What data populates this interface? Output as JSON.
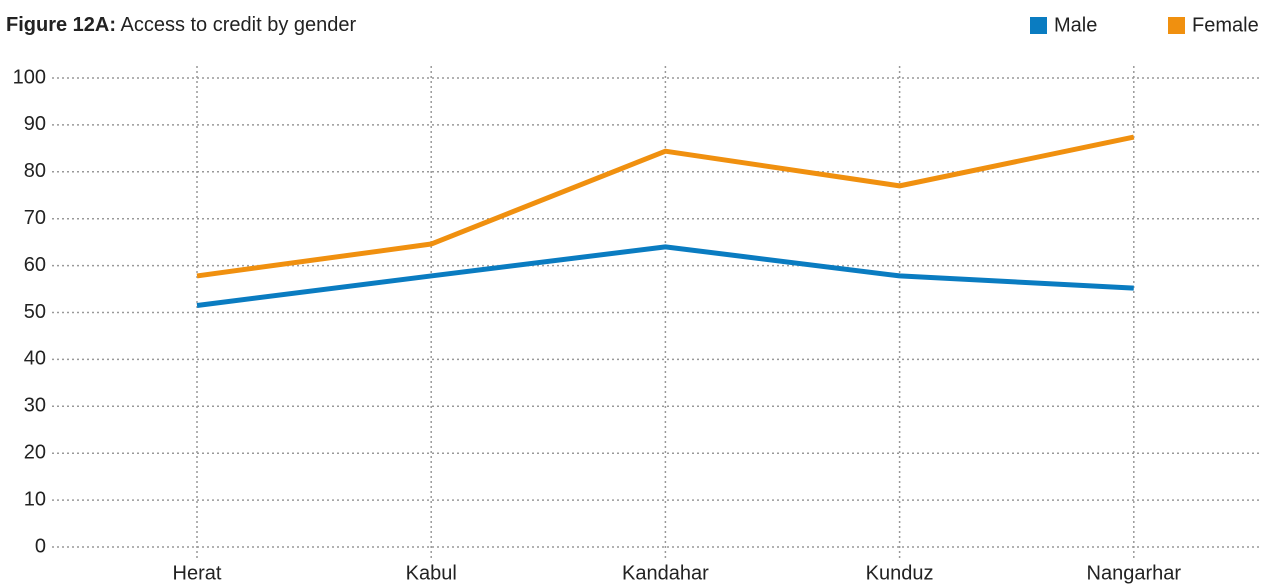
{
  "chart_data": {
    "type": "line",
    "title_label": "Figure 12A:",
    "title": "Access to credit by gender",
    "categories": [
      "Herat",
      "Kabul",
      "Kandahar",
      "Kunduz",
      "Nangarhar"
    ],
    "series": [
      {
        "name": "Male",
        "color": "#0a7cc1",
        "values": [
          51.5,
          57.8,
          64,
          57.8,
          55.2
        ]
      },
      {
        "name": "Female",
        "color": "#f0900f",
        "values": [
          57.8,
          64.6,
          84.4,
          77,
          87.4
        ]
      }
    ],
    "ylim": [
      0,
      100
    ],
    "yticks": [
      0,
      10,
      20,
      30,
      40,
      50,
      60,
      70,
      80,
      90,
      100
    ],
    "grid": true,
    "legend": "top-right"
  }
}
